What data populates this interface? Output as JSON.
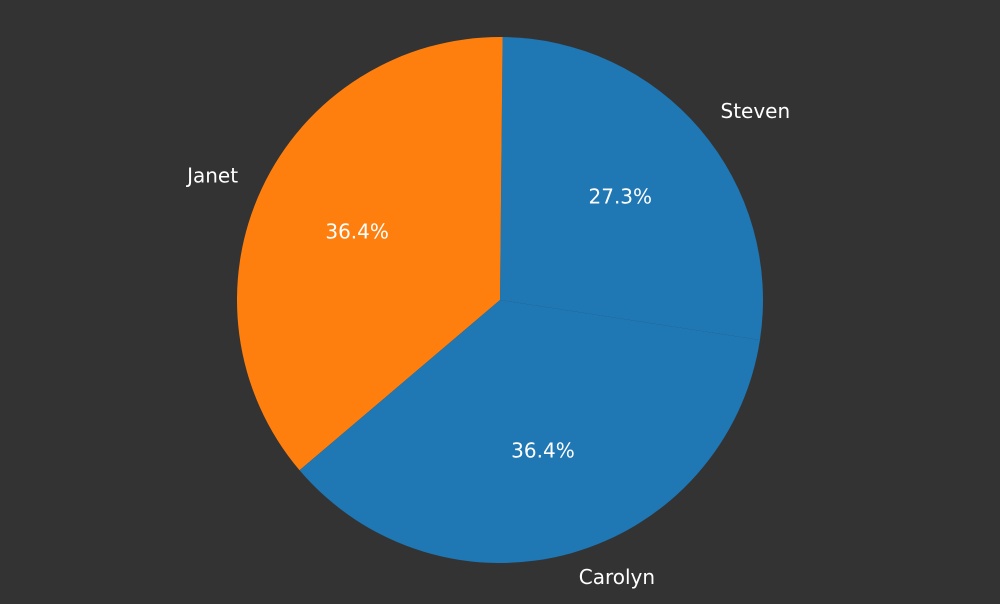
{
  "chart_data": {
    "type": "pie",
    "title": "",
    "background": "#333333",
    "slices": [
      {
        "label": "Steven",
        "value": 27.3,
        "pct_label": "27.3%",
        "color": "#1f77b4"
      },
      {
        "label": "Janet",
        "value": 36.4,
        "pct_label": "36.4%",
        "color": "#ff7f0e"
      },
      {
        "label": "Carolyn",
        "value": 36.4,
        "pct_label": "36.4%",
        "color": "#1f77b4"
      }
    ]
  }
}
